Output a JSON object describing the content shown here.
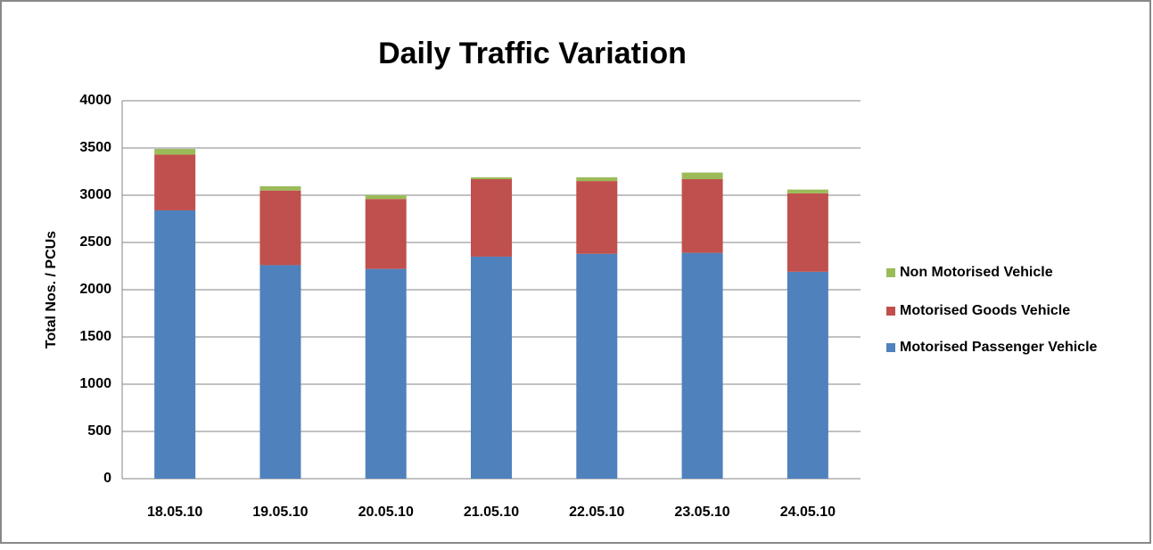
{
  "chart_data": {
    "type": "stacked_bar",
    "title": "Daily Traffic Variation",
    "y_label": "Total Nos. / PCUs",
    "categories": [
      "18.05.10",
      "19.05.10",
      "20.05.10",
      "21.05.10",
      "22.05.10",
      "23.05.10",
      "24.05.10"
    ],
    "series": [
      {
        "name": "Motorised Passenger Vehicle",
        "color": "#4f81bd",
        "values": [
          2840,
          2260,
          2220,
          2350,
          2380,
          2390,
          2190
        ]
      },
      {
        "name": "Motorised Goods Vehicle",
        "color": "#c0504d",
        "values": [
          590,
          790,
          740,
          820,
          770,
          780,
          830
        ]
      },
      {
        "name": "Non Motorised Vehicle",
        "color": "#9bbb59",
        "values": [
          60,
          45,
          40,
          20,
          40,
          70,
          40
        ]
      }
    ],
    "ylim": [
      0,
      4000
    ],
    "yticks": [
      0,
      500,
      1000,
      1500,
      2000,
      2500,
      3000,
      3500,
      4000
    ],
    "grid": true,
    "legend": "right"
  }
}
